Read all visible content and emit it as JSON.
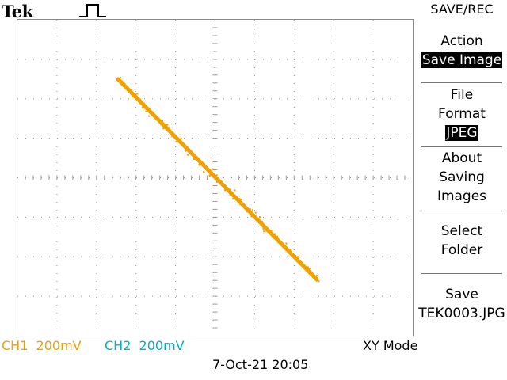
{
  "header": {
    "brand": "Tek"
  },
  "icons": {
    "trigger": "rising-pulse-icon"
  },
  "colors": {
    "trace": "#f0a000",
    "ch1": "#f0a000",
    "ch2": "#00b0c0",
    "grid": "#9a9a9a"
  },
  "menu": {
    "title": "SAVE/REC",
    "action_label": "Action",
    "action_value": "Save Image",
    "format_label_1": "File",
    "format_label_2": "Format",
    "format_value": "JPEG",
    "about_1": "About",
    "about_2": "Saving",
    "about_3": "Images",
    "select_1": "Select",
    "select_2": "Folder",
    "save_1": "Save",
    "save_2": "TEK0003.JPG"
  },
  "status": {
    "ch1": "CH1  200mV",
    "ch2": "CH2  200mV",
    "mode": "XY Mode",
    "datetime": "7-Oct-21 20:05"
  }
}
